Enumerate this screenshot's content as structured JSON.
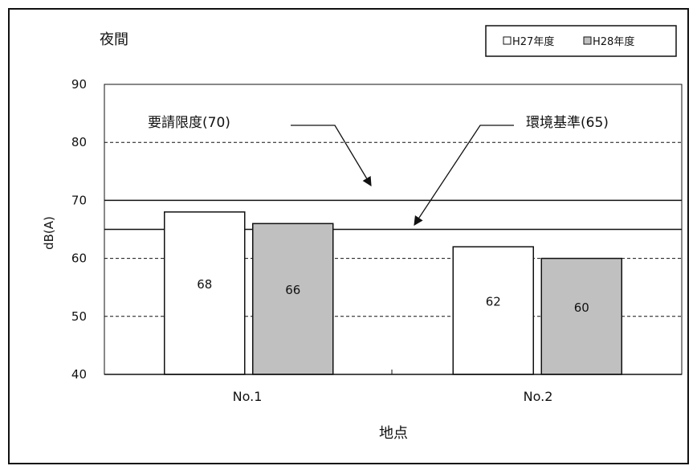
{
  "chart_data": {
    "type": "bar",
    "title": "夜間",
    "xlabel": "地点",
    "ylabel": "dB(A)",
    "ylim": [
      40,
      90
    ],
    "yticks": [
      40,
      50,
      60,
      70,
      80,
      90
    ],
    "categories": [
      "No.1",
      "No.2"
    ],
    "series": [
      {
        "name": "H27年度",
        "values": [
          68,
          62
        ],
        "color": "#ffffff"
      },
      {
        "name": "H28年度",
        "values": [
          66,
          60
        ],
        "color": "#c0c0c0"
      }
    ],
    "reference_lines": [
      {
        "label": "要請限度(70)",
        "value": 70
      },
      {
        "label": "環境基準(65)",
        "value": 65
      }
    ],
    "grid": true,
    "legend_position": "top-right"
  }
}
